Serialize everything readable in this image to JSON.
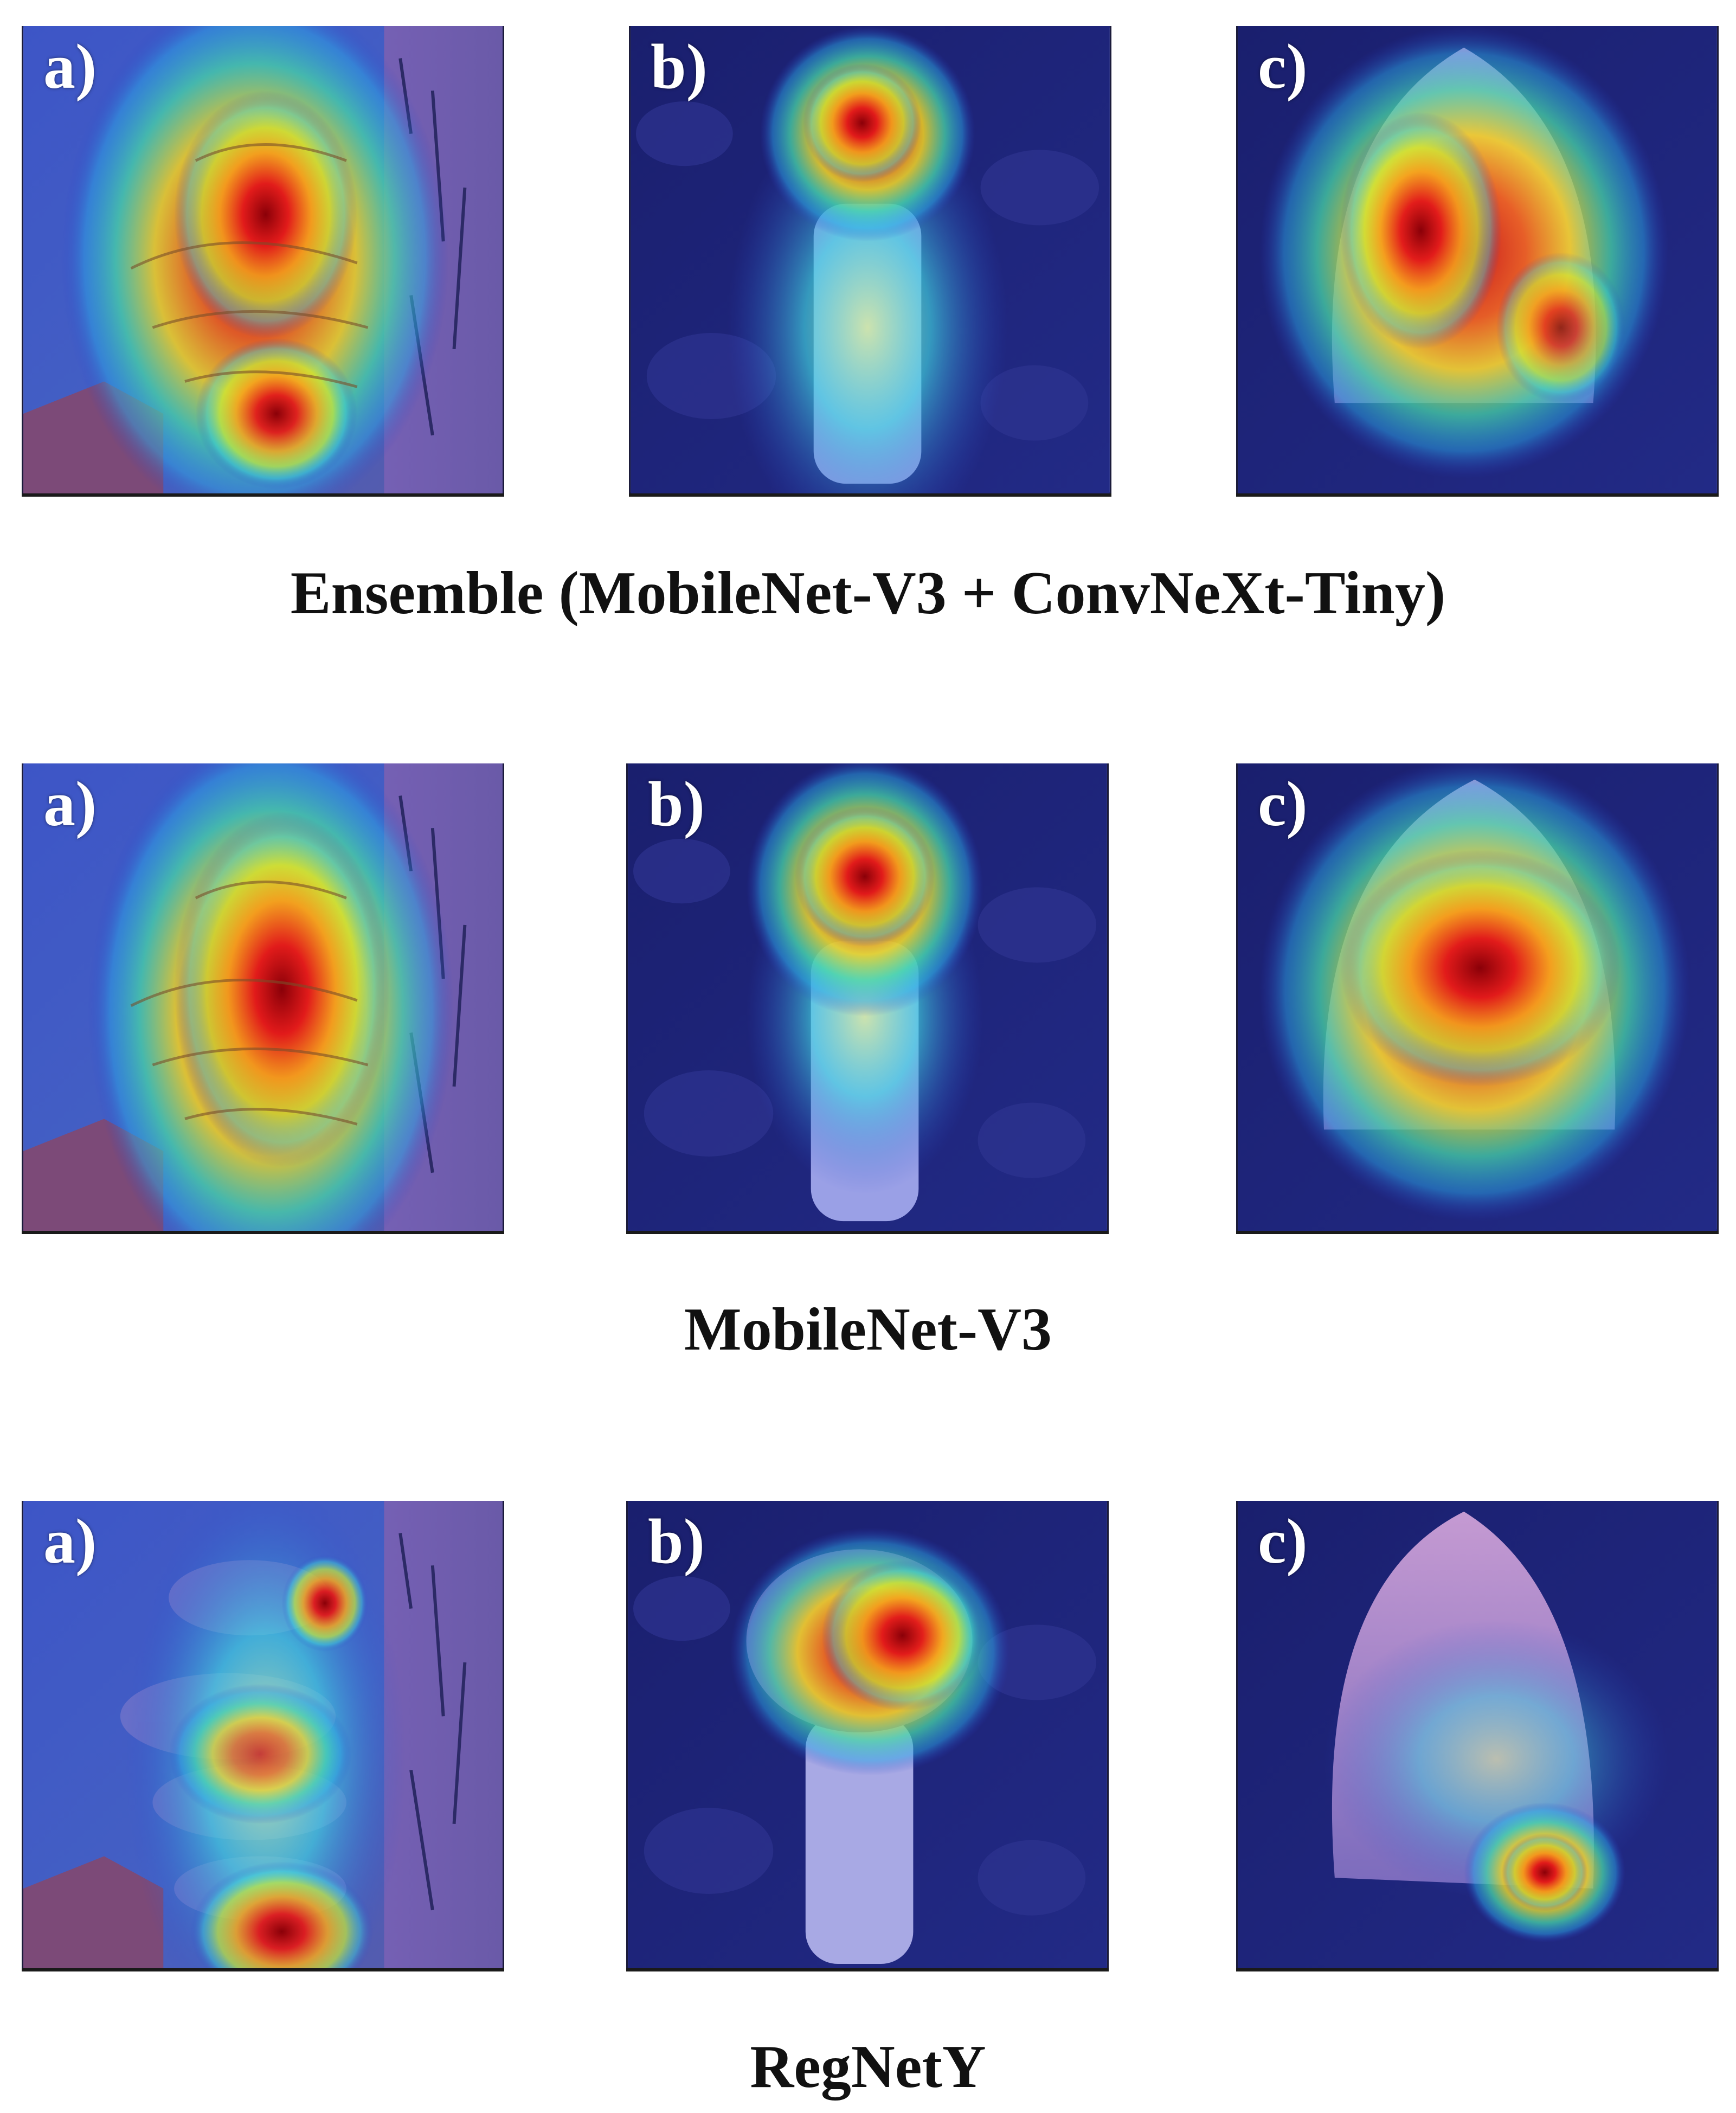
{
  "rows": [
    {
      "caption": "Ensemble (MobileNet-V3 + ConvNeXt-Tiny)",
      "panels": [
        {
          "tag": "a)"
        },
        {
          "tag": "b)"
        },
        {
          "tag": "c)"
        }
      ]
    },
    {
      "caption": "MobileNet-V3",
      "panels": [
        {
          "tag": "a)"
        },
        {
          "tag": "b)"
        },
        {
          "tag": "c)"
        }
      ]
    },
    {
      "caption": "RegNetY",
      "panels": [
        {
          "tag": "a)"
        },
        {
          "tag": "b)"
        },
        {
          "tag": "c)"
        }
      ]
    }
  ],
  "colors": {
    "background": "#ffffff",
    "cold": "#1c1f7a",
    "hot": "#e0201a",
    "mid": "#f5d21f"
  }
}
